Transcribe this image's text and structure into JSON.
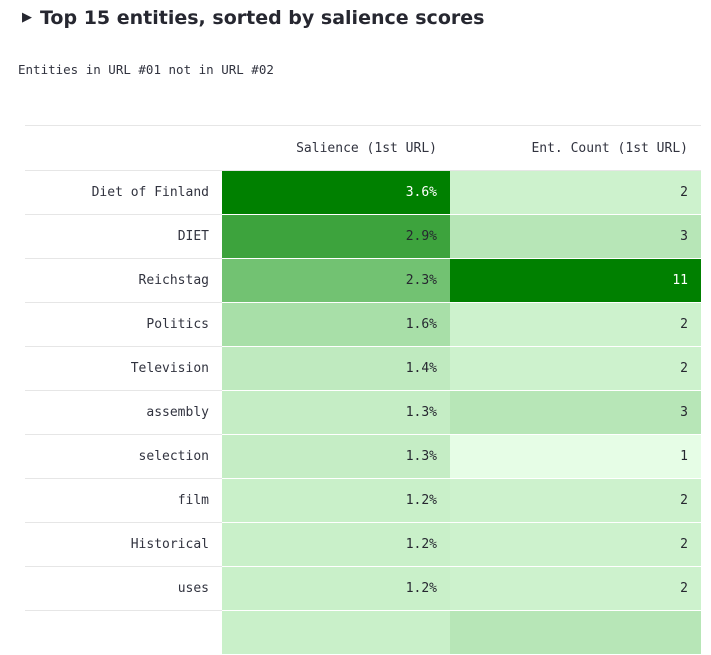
{
  "section": {
    "toggle_icon": "triangle-right-icon",
    "title": "Top 15 entities, sorted by salience scores",
    "subtitle": "Entities in URL #01 not in URL #02"
  },
  "table": {
    "columns": [
      "",
      "Salience (1st URL)",
      "Ent. Count (1st URL)"
    ],
    "rows": [
      {
        "entity": "Diet of Finland",
        "salience": "3.6%",
        "count": "2",
        "salience_bg": "#008000",
        "salience_fg": "#ffffff",
        "count_bg": "#cdf2cd",
        "count_fg": "#262730"
      },
      {
        "entity": "DIET",
        "salience": "2.9%",
        "count": "3",
        "salience_bg": "#3da33d",
        "salience_fg": "#262730",
        "count_bg": "#b7e6b7",
        "count_fg": "#262730"
      },
      {
        "entity": "Reichstag",
        "salience": "2.3%",
        "count": "11",
        "salience_bg": "#72c272",
        "salience_fg": "#262730",
        "count_bg": "#008000",
        "count_fg": "#ffffff"
      },
      {
        "entity": "Politics",
        "salience": "1.6%",
        "count": "2",
        "salience_bg": "#a8dfa8",
        "salience_fg": "#262730",
        "count_bg": "#cdf2cd",
        "count_fg": "#262730"
      },
      {
        "entity": "Television",
        "salience": "1.4%",
        "count": "2",
        "salience_bg": "#bfeabf",
        "salience_fg": "#262730",
        "count_bg": "#cdf2cd",
        "count_fg": "#262730"
      },
      {
        "entity": "assembly",
        "salience": "1.3%",
        "count": "3",
        "salience_bg": "#c5edc5",
        "salience_fg": "#262730",
        "count_bg": "#b7e6b7",
        "count_fg": "#262730"
      },
      {
        "entity": "selection",
        "salience": "1.3%",
        "count": "1",
        "salience_bg": "#c5edc5",
        "salience_fg": "#262730",
        "count_bg": "#e6fde6",
        "count_fg": "#262730"
      },
      {
        "entity": "film",
        "salience": "1.2%",
        "count": "2",
        "salience_bg": "#c9f0c9",
        "salience_fg": "#262730",
        "count_bg": "#cdf2cd",
        "count_fg": "#262730"
      },
      {
        "entity": "Historical",
        "salience": "1.2%",
        "count": "2",
        "salience_bg": "#c9f0c9",
        "salience_fg": "#262730",
        "count_bg": "#cdf2cd",
        "count_fg": "#262730"
      },
      {
        "entity": "uses",
        "salience": "1.2%",
        "count": "2",
        "salience_bg": "#c9f0c9",
        "salience_fg": "#262730",
        "count_bg": "#cdf2cd",
        "count_fg": "#262730"
      }
    ],
    "partial_row": {
      "salience_bg": "#c9f0c9",
      "count_bg": "#b7e6b7"
    }
  }
}
